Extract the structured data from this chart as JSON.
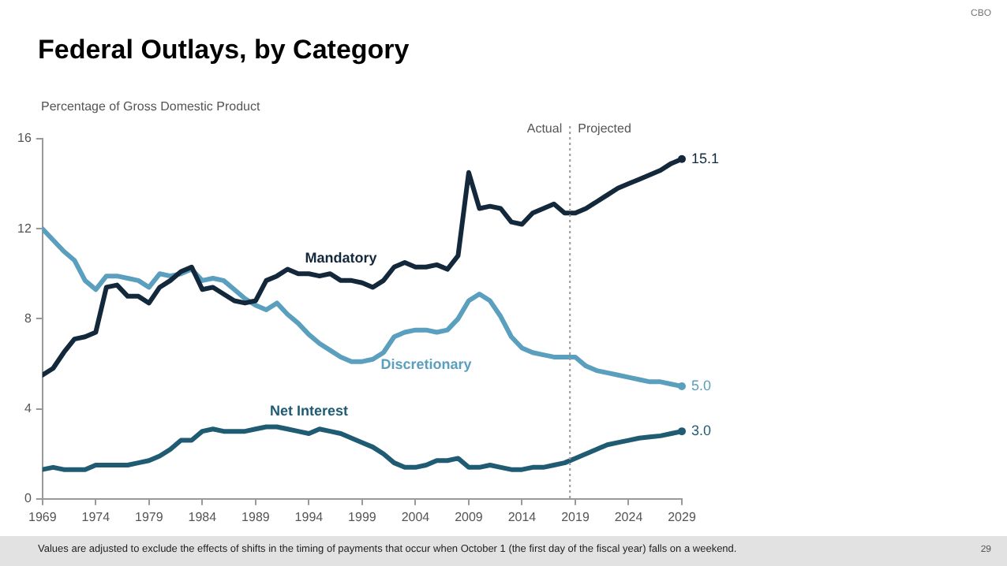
{
  "chart_data": {
    "type": "line",
    "title": "Federal Outlays, by Category",
    "ylabel": "Percentage of Gross Domestic Product",
    "x": [
      1969,
      1970,
      1971,
      1972,
      1973,
      1974,
      1975,
      1976,
      1977,
      1978,
      1979,
      1980,
      1981,
      1982,
      1983,
      1984,
      1985,
      1986,
      1987,
      1988,
      1989,
      1990,
      1991,
      1992,
      1993,
      1994,
      1995,
      1996,
      1997,
      1998,
      1999,
      2000,
      2001,
      2002,
      2003,
      2004,
      2005,
      2006,
      2007,
      2008,
      2009,
      2010,
      2011,
      2012,
      2013,
      2014,
      2015,
      2016,
      2017,
      2018,
      2019,
      2020,
      2021,
      2022,
      2023,
      2024,
      2025,
      2026,
      2027,
      2028,
      2029
    ],
    "series": [
      {
        "name": "Mandatory",
        "color": "#14283c",
        "values": [
          5.5,
          5.8,
          6.5,
          7.1,
          7.2,
          7.4,
          9.4,
          9.5,
          9.0,
          9.0,
          8.7,
          9.4,
          9.7,
          10.1,
          10.3,
          9.3,
          9.4,
          9.1,
          8.8,
          8.7,
          8.8,
          9.7,
          9.9,
          10.2,
          10.0,
          10.0,
          9.9,
          10.0,
          9.7,
          9.7,
          9.6,
          9.4,
          9.7,
          10.3,
          10.5,
          10.3,
          10.3,
          10.4,
          10.2,
          10.8,
          14.5,
          12.9,
          13.0,
          12.9,
          12.3,
          12.2,
          12.7,
          12.9,
          13.1,
          12.7,
          12.7,
          12.9,
          13.2,
          13.5,
          13.8,
          14.0,
          14.2,
          14.4,
          14.6,
          14.9,
          15.1
        ],
        "value_labels": [
          null,
          null,
          null,
          null,
          null,
          null,
          null,
          null,
          null,
          null,
          null,
          null,
          null,
          null,
          null,
          null,
          null,
          null,
          null,
          null,
          null,
          null,
          null,
          null,
          null,
          null,
          null,
          null,
          null,
          null,
          null,
          null,
          null,
          null,
          null,
          null,
          null,
          null,
          null,
          null,
          null,
          null,
          null,
          null,
          null,
          null,
          null,
          null,
          null,
          null,
          null,
          null,
          null,
          null,
          null,
          null,
          null,
          null,
          null,
          null,
          "15.1"
        ]
      },
      {
        "name": "Discretionary",
        "color": "#5a9fbd",
        "values": [
          12.0,
          11.5,
          11.0,
          10.6,
          9.7,
          9.3,
          9.9,
          9.9,
          9.8,
          9.7,
          9.4,
          10.0,
          9.9,
          10.0,
          10.2,
          9.7,
          9.8,
          9.7,
          9.3,
          8.9,
          8.6,
          8.4,
          8.7,
          8.2,
          7.8,
          7.3,
          6.9,
          6.6,
          6.3,
          6.1,
          6.1,
          6.2,
          6.5,
          7.2,
          7.4,
          7.5,
          7.5,
          7.4,
          7.5,
          8.0,
          8.8,
          9.1,
          8.8,
          8.1,
          7.2,
          6.7,
          6.5,
          6.4,
          6.3,
          6.3,
          6.3,
          5.9,
          5.7,
          5.6,
          5.5,
          5.4,
          5.3,
          5.2,
          5.2,
          5.1,
          5.0
        ],
        "value_labels": [
          null,
          null,
          null,
          null,
          null,
          null,
          null,
          null,
          null,
          null,
          null,
          null,
          null,
          null,
          null,
          null,
          null,
          null,
          null,
          null,
          null,
          null,
          null,
          null,
          null,
          null,
          null,
          null,
          null,
          null,
          null,
          null,
          null,
          null,
          null,
          null,
          null,
          null,
          null,
          null,
          null,
          null,
          null,
          null,
          null,
          null,
          null,
          null,
          null,
          null,
          null,
          null,
          null,
          null,
          null,
          null,
          null,
          null,
          null,
          null,
          "5.0"
        ]
      },
      {
        "name": "Net Interest",
        "color": "#1f5c73",
        "values": [
          1.3,
          1.4,
          1.3,
          1.3,
          1.3,
          1.5,
          1.5,
          1.5,
          1.5,
          1.6,
          1.7,
          1.9,
          2.2,
          2.6,
          2.6,
          3.0,
          3.1,
          3.0,
          3.0,
          3.0,
          3.1,
          3.2,
          3.2,
          3.1,
          3.0,
          2.9,
          3.1,
          3.0,
          2.9,
          2.7,
          2.5,
          2.3,
          2.0,
          1.6,
          1.4,
          1.4,
          1.5,
          1.7,
          1.7,
          1.8,
          1.4,
          1.4,
          1.5,
          1.4,
          1.3,
          1.3,
          1.4,
          1.4,
          1.5,
          1.6,
          1.8,
          2.0,
          2.2,
          2.4,
          2.5,
          2.6,
          2.7,
          2.75,
          2.8,
          2.9,
          3.0
        ],
        "value_labels": [
          null,
          null,
          null,
          null,
          null,
          null,
          null,
          null,
          null,
          null,
          null,
          null,
          null,
          null,
          null,
          null,
          null,
          null,
          null,
          null,
          null,
          null,
          null,
          null,
          null,
          null,
          null,
          null,
          null,
          null,
          null,
          null,
          null,
          null,
          null,
          null,
          null,
          null,
          null,
          null,
          null,
          null,
          null,
          null,
          null,
          null,
          null,
          null,
          null,
          null,
          null,
          null,
          null,
          null,
          null,
          null,
          null,
          null,
          null,
          null,
          "3.0"
        ]
      }
    ],
    "xlim": [
      1969,
      2029
    ],
    "xticks": [
      1969,
      1974,
      1979,
      1984,
      1989,
      1994,
      1999,
      2004,
      2009,
      2014,
      2019,
      2024,
      2029
    ],
    "ylim": [
      0,
      16
    ],
    "yticks": [
      0,
      4,
      8,
      12,
      16
    ],
    "grid": false,
    "legend": false,
    "marker": "none",
    "line_style": "solid",
    "ref_lines": [
      {
        "axis": "x",
        "value": 2018.5,
        "label": null,
        "color": "#999999",
        "line_style": "dotted"
      }
    ],
    "annotations": [
      "Actual",
      "Projected",
      "CBO",
      "Values are adjusted to exclude the effects of shifts in the timing of payments that occur when October 1 (the first day of the fiscal year) falls on a weekend.",
      "29"
    ]
  }
}
